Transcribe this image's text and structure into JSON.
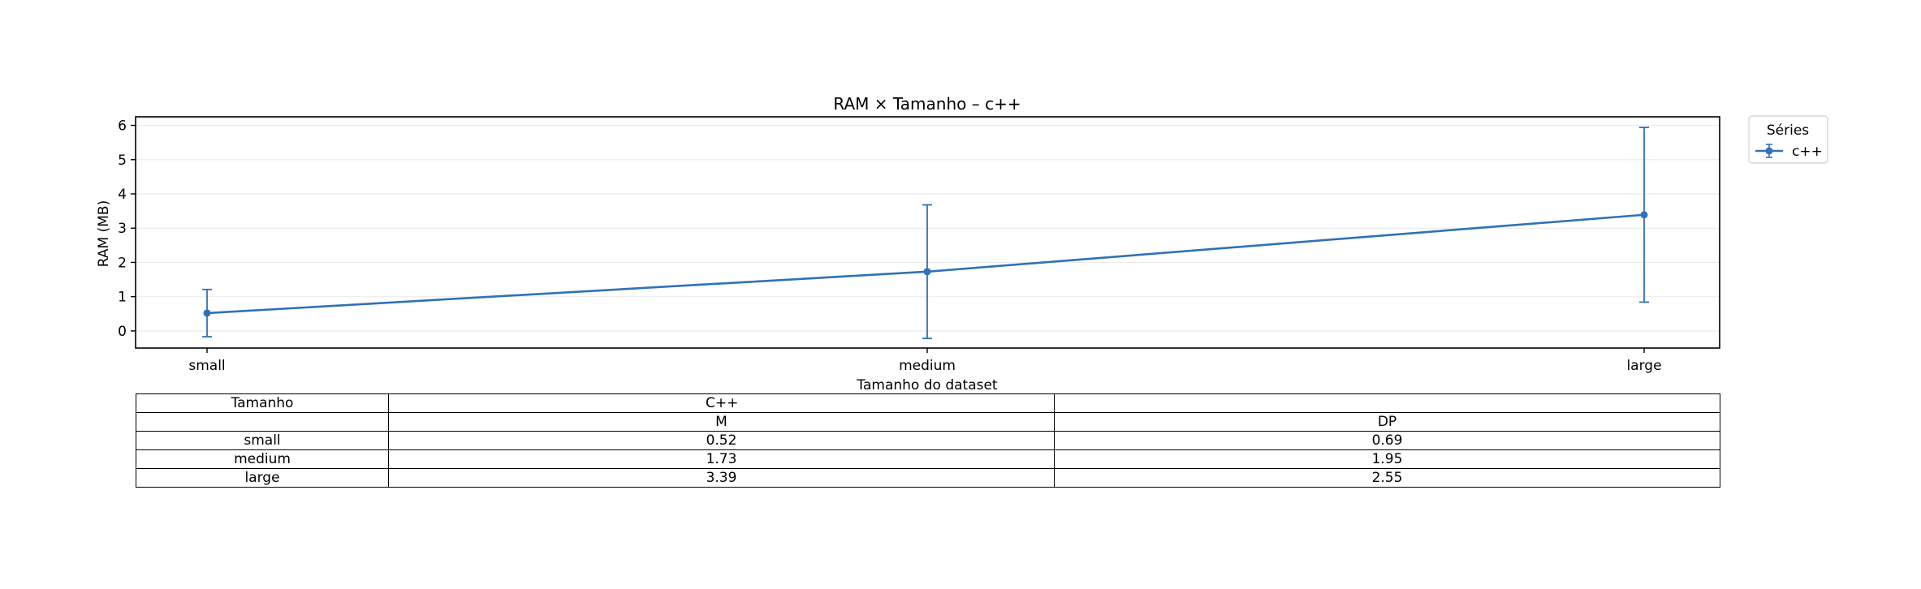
{
  "chart_data": {
    "type": "line",
    "title": "RAM × Tamanho – c++",
    "xlabel": "Tamanho do dataset",
    "ylabel": "RAM (MB)",
    "categories": [
      "small",
      "medium",
      "large"
    ],
    "series": [
      {
        "name": "c++",
        "values": [
          0.52,
          1.73,
          3.39
        ],
        "errors": [
          0.69,
          1.95,
          2.55
        ],
        "color": "#2f72b6"
      }
    ],
    "ylim": [
      -0.5,
      6.25
    ],
    "yticks": [
      0,
      1,
      2,
      3,
      4,
      5,
      6
    ],
    "grid": true,
    "legend": {
      "title": "Séries",
      "placement": "outside-top-right"
    }
  },
  "table": {
    "header1": [
      "Tamanho",
      "C++",
      ""
    ],
    "header2": [
      "",
      "M",
      "DP"
    ],
    "rows": [
      [
        "small",
        "0.52",
        "0.69"
      ],
      [
        "medium",
        "1.73",
        "1.95"
      ],
      [
        "large",
        "3.39",
        "2.55"
      ]
    ]
  }
}
